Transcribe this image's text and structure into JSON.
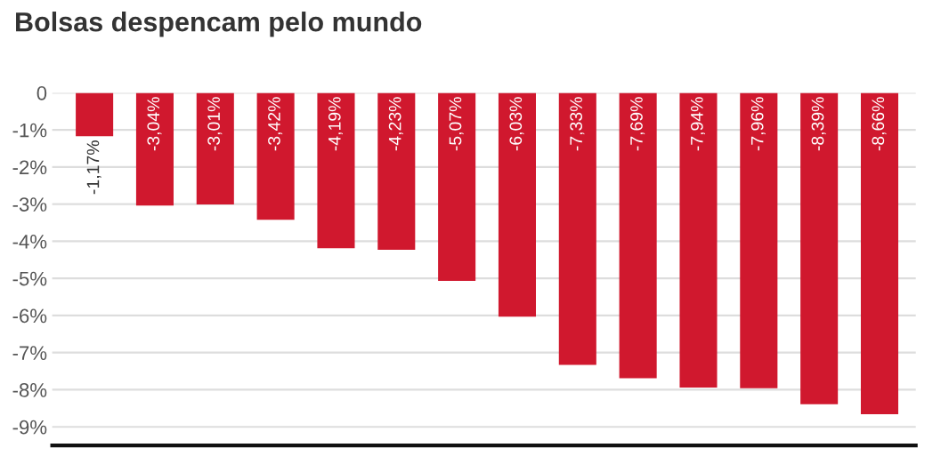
{
  "chart_data": {
    "type": "bar",
    "title": "Bolsas despencam pelo mundo",
    "categories": [
      null,
      null,
      null,
      null,
      null,
      null,
      null,
      null,
      null,
      null,
      null,
      null,
      null,
      null
    ],
    "values": [
      -1.17,
      -3.04,
      -3.01,
      -3.42,
      -4.19,
      -4.23,
      -5.07,
      -6.03,
      -7.33,
      -7.69,
      -7.94,
      -7.96,
      -8.39,
      -8.66
    ],
    "value_labels": [
      "-1,17%",
      "-3,04%",
      "-3,01%",
      "-3,42%",
      "-4,19%",
      "-4,23%",
      "-5,07%",
      "-6,03%",
      "-7,33%",
      "-7,69%",
      "-7,94%",
      "-7,96%",
      "-8,39%",
      "-8,66%"
    ],
    "color": "#d0182e",
    "ylim": [
      -9.5,
      0
    ],
    "yticks": [
      {
        "value": 0,
        "label": "0"
      },
      {
        "value": -1,
        "label": "-1%"
      },
      {
        "value": -2,
        "label": "-2%"
      },
      {
        "value": -3,
        "label": "-3%"
      },
      {
        "value": -4,
        "label": "-4%"
      },
      {
        "value": -5,
        "label": "-5%"
      },
      {
        "value": -6,
        "label": "-6%"
      },
      {
        "value": -7,
        "label": "-7%"
      },
      {
        "value": -8,
        "label": "-8%"
      },
      {
        "value": -9,
        "label": "-9%"
      }
    ],
    "grid": "y",
    "tick_labels": "y"
  }
}
